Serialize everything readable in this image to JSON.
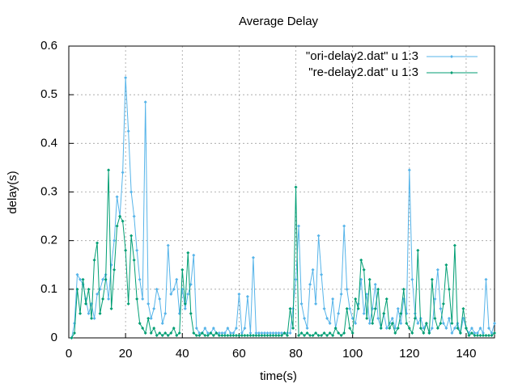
{
  "chart_data": {
    "type": "line",
    "title": "Average Delay",
    "x_label": "time(s)",
    "y_label": "delay(s)",
    "xlim": [
      0,
      150
    ],
    "ylim": [
      0,
      0.6
    ],
    "xticks": [
      0,
      20,
      40,
      60,
      80,
      100,
      120,
      140
    ],
    "yticks": [
      0,
      0.1,
      0.2,
      0.3,
      0.4,
      0.5,
      0.6
    ],
    "grid": true,
    "legend": "top-right",
    "x": [
      1,
      2,
      3,
      4,
      5,
      6,
      7,
      8,
      9,
      10,
      11,
      12,
      13,
      14,
      15,
      16,
      17,
      18,
      19,
      20,
      21,
      22,
      23,
      24,
      25,
      26,
      27,
      28,
      29,
      30,
      31,
      32,
      33,
      34,
      35,
      36,
      37,
      38,
      39,
      40,
      41,
      42,
      43,
      44,
      45,
      46,
      47,
      48,
      49,
      50,
      51,
      52,
      53,
      54,
      55,
      56,
      57,
      58,
      59,
      60,
      61,
      62,
      63,
      64,
      65,
      66,
      67,
      68,
      69,
      70,
      71,
      72,
      73,
      74,
      75,
      76,
      77,
      78,
      79,
      80,
      81,
      82,
      83,
      84,
      85,
      86,
      87,
      88,
      89,
      90,
      91,
      92,
      93,
      94,
      95,
      96,
      97,
      98,
      99,
      100,
      101,
      102,
      103,
      104,
      105,
      106,
      107,
      108,
      109,
      110,
      111,
      112,
      113,
      114,
      115,
      116,
      117,
      118,
      119,
      120,
      121,
      122,
      123,
      124,
      125,
      126,
      127,
      128,
      129,
      130,
      131,
      132,
      133,
      134,
      135,
      136,
      137,
      138,
      139,
      140,
      141,
      142,
      143,
      144,
      145,
      146,
      147,
      148,
      149,
      150
    ],
    "series": [
      {
        "name": "\"ori-delay2.dat\" u 1:3",
        "color": "#56b4e9",
        "values": [
          0,
          0.03,
          0.13,
          0.12,
          0.11,
          0.08,
          0.05,
          0.07,
          0.04,
          0.09,
          0.1,
          0.12,
          0.13,
          0.08,
          0.15,
          0.2,
          0.29,
          0.25,
          0.34,
          0.535,
          0.425,
          0.3,
          0.25,
          0.18,
          0.12,
          0.08,
          0.485,
          0.07,
          0.04,
          0.06,
          0.1,
          0.08,
          0.03,
          0.05,
          0.19,
          0.09,
          0.1,
          0.12,
          0.05,
          0.1,
          0.06,
          0.09,
          0.11,
          0.17,
          0.02,
          0.01,
          0.01,
          0.02,
          0.01,
          0.01,
          0.02,
          0.01,
          0.01,
          0.01,
          0.01,
          0.02,
          0.01,
          0.01,
          0.02,
          0.09,
          0.01,
          0.02,
          0.085,
          0.01,
          0.165,
          0.01,
          0.01,
          0.01,
          0.01,
          0.01,
          0.01,
          0.01,
          0.01,
          0.01,
          0.01,
          0.01,
          0.01,
          0.01,
          0.06,
          0.12,
          0.23,
          0.07,
          0.04,
          0.02,
          0.11,
          0.14,
          0.07,
          0.21,
          0.13,
          0.06,
          0.04,
          0.03,
          0.08,
          0.02,
          0.05,
          0.09,
          0.23,
          0.1,
          0.06,
          0.04,
          0.03,
          0.07,
          0.12,
          0.05,
          0.09,
          0.03,
          0.06,
          0.11,
          0.04,
          0.02,
          0.05,
          0.02,
          0.03,
          0.04,
          0.02,
          0.06,
          0.03,
          0.08,
          0.05,
          0.345,
          0.12,
          0.05,
          0.03,
          0.04,
          0.02,
          0.03,
          0.01,
          0.02,
          0.08,
          0.14,
          0.06,
          0.03,
          0.02,
          0.04,
          0.01,
          0.02,
          0.03,
          0.01,
          0.04,
          0.02,
          0.01,
          0.02,
          0.01,
          0.01,
          0.02,
          0.01,
          0.12,
          0.02,
          0.01,
          0.03
        ]
      },
      {
        "name": "\"re-delay2.dat\" u 1:3",
        "color": "#009e73",
        "values": [
          0,
          0.01,
          0.1,
          0.05,
          0.12,
          0.07,
          0.1,
          0.04,
          0.16,
          0.195,
          0.05,
          0.08,
          0.12,
          0.345,
          0.06,
          0.14,
          0.23,
          0.25,
          0.24,
          0.18,
          0.07,
          0.21,
          0.16,
          0.08,
          0.03,
          0.02,
          0.01,
          0.04,
          0.01,
          0.02,
          0.005,
          0.01,
          0.005,
          0.01,
          0.005,
          0.01,
          0.02,
          0.005,
          0.01,
          0.14,
          0.07,
          0.175,
          0.05,
          0.01,
          0.005,
          0.005,
          0.01,
          0.005,
          0.005,
          0.01,
          0.005,
          0.01,
          0.005,
          0.005,
          0.005,
          0.005,
          0.005,
          0.005,
          0.005,
          0.005,
          0.005,
          0.005,
          0.005,
          0.005,
          0.005,
          0.005,
          0.005,
          0.005,
          0.005,
          0.005,
          0.005,
          0.005,
          0.005,
          0.005,
          0.005,
          0.01,
          0.005,
          0.06,
          0.02,
          0.31,
          0.005,
          0.01,
          0.005,
          0.01,
          0.005,
          0.005,
          0.01,
          0.005,
          0.005,
          0.01,
          0.005,
          0.01,
          0.005,
          0.02,
          0.01,
          0.005,
          0.01,
          0.06,
          0.02,
          0.01,
          0.08,
          0.06,
          0.16,
          0.14,
          0.04,
          0.12,
          0.03,
          0.06,
          0.1,
          0.02,
          0.05,
          0.08,
          0.02,
          0.03,
          0.01,
          0.02,
          0.05,
          0.1,
          0.03,
          0.02,
          0.01,
          0.04,
          0.18,
          0.02,
          0.01,
          0.03,
          0.01,
          0.12,
          0.04,
          0.02,
          0.03,
          0.07,
          0.15,
          0.1,
          0.03,
          0.19,
          0.02,
          0.01,
          0.06,
          0.02,
          0.005,
          0.01,
          0.005,
          0.005,
          0.005,
          0.005,
          0.005,
          0.005,
          0.005,
          0.01
        ]
      }
    ]
  }
}
